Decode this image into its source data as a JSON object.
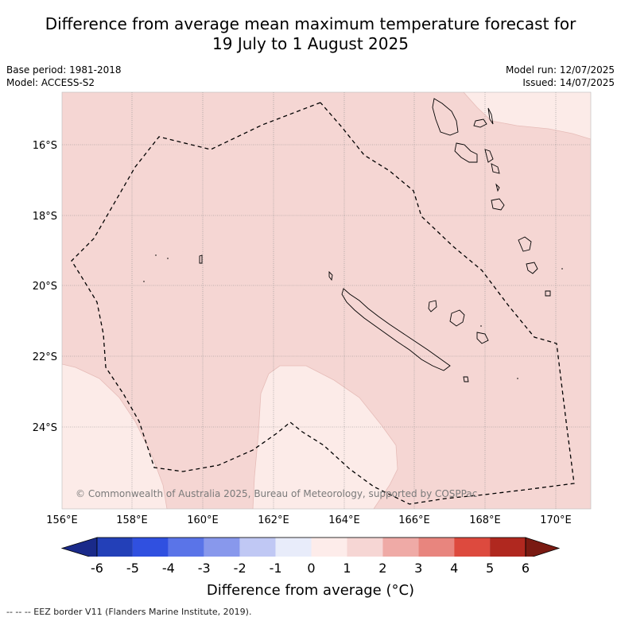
{
  "title_line1": "Difference from average mean maximum temperature forecast for",
  "title_line2": "19 July to 1 August 2025",
  "base_period": "Base period: 1981-2018",
  "model": "Model: ACCESS-S2",
  "model_run": "Model run: 12/07/2025",
  "issued": "Issued: 14/07/2025",
  "copyright": "© Commonwealth of Australia 2025, Bureau of Meteorology, supported by COSPPac",
  "lat_labels": [
    "16°S",
    "18°S",
    "20°S",
    "22°S",
    "24°S"
  ],
  "lon_labels": [
    "156°E",
    "158°E",
    "160°E",
    "162°E",
    "164°E",
    "166°E",
    "168°E",
    "170°E"
  ],
  "colorbar": {
    "labels": [
      "-6",
      "-5",
      "-4",
      "-3",
      "-2",
      "-1",
      "0",
      "1",
      "2",
      "3",
      "4",
      "5",
      "6"
    ],
    "colors": [
      "#1a2a8a",
      "#2340b8",
      "#3050e0",
      "#5a74e8",
      "#8898ec",
      "#c0c8f4",
      "#e8ecfa",
      "#fdecea",
      "#f6d6d4",
      "#efaaa6",
      "#e8857e",
      "#dd4a3e",
      "#b0281f",
      "#7a1a12"
    ],
    "title": "Difference from average (°C)"
  },
  "legend_footer": "-- -- -- EEZ border V11 (Flanders Marine Institute, 2019).",
  "map_colors": {
    "category_0_1": "#fcebe8",
    "category_1_2": "#f5d6d3"
  }
}
